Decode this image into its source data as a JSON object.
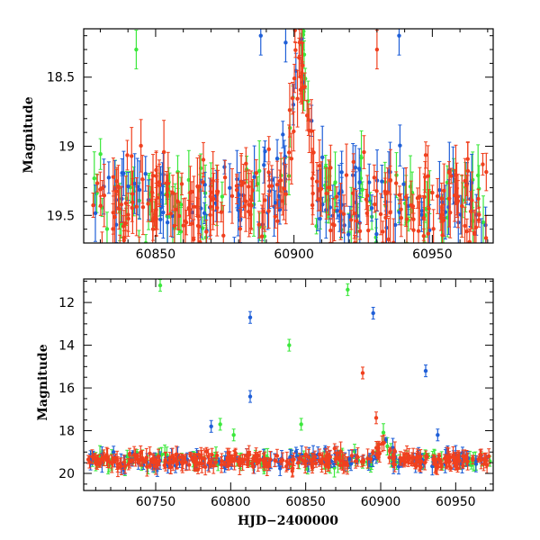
{
  "chart_data": [
    {
      "type": "scatter",
      "panel": "top",
      "xlabel": "",
      "ylabel": "Magnitude",
      "xlim": [
        60824,
        60972
      ],
      "ylim": [
        19.7,
        18.15
      ],
      "y_inverted": true,
      "xticks": [
        60850,
        60900,
        60950
      ],
      "xtick_labels": [
        "60850",
        "60900",
        "60950"
      ],
      "yticks": [
        18.5,
        19,
        19.5
      ],
      "ytick_labels": [
        "18.5",
        "19",
        "19.5"
      ],
      "grid": false,
      "series_colors": {
        "blue": "#1f5fd8",
        "green": "#3ce83c",
        "red": "#f0401e"
      },
      "baseline_mag": 19.4,
      "flare": {
        "peak_x": 60902,
        "peak_mag": 18.35,
        "width_days": 4
      },
      "notable_points": [
        {
          "series": "green",
          "x": 60843,
          "y": 18.3
        },
        {
          "series": "blue",
          "x": 60888,
          "y": 18.2
        },
        {
          "series": "blue",
          "x": 60897,
          "y": 18.25
        },
        {
          "series": "red",
          "x": 60930,
          "y": 18.3
        },
        {
          "series": "blue",
          "x": 60938,
          "y": 18.2
        }
      ]
    },
    {
      "type": "scatter",
      "panel": "bottom",
      "xlabel": "HJD−2400000",
      "ylabel": "Magnitude",
      "xlim": [
        60702,
        60975
      ],
      "ylim": [
        20.8,
        10.9
      ],
      "y_inverted": true,
      "xticks": [
        60750,
        60800,
        60850,
        60900,
        60950
      ],
      "xtick_labels": [
        "60750",
        "60800",
        "60850",
        "60900",
        "60950"
      ],
      "yticks": [
        12,
        14,
        16,
        18,
        20
      ],
      "ytick_labels": [
        "12",
        "14",
        "16",
        "18",
        "20"
      ],
      "grid": false,
      "series_colors": {
        "blue": "#1f5fd8",
        "green": "#3ce83c",
        "red": "#f0401e"
      },
      "baseline_mag": 19.4,
      "outliers": [
        {
          "series": "green",
          "x": 60753,
          "y": 11.2
        },
        {
          "series": "blue",
          "x": 60813,
          "y": 12.7
        },
        {
          "series": "blue",
          "x": 60813,
          "y": 16.4
        },
        {
          "series": "green",
          "x": 60839,
          "y": 14.0
        },
        {
          "series": "green",
          "x": 60878,
          "y": 11.4
        },
        {
          "series": "blue",
          "x": 60895,
          "y": 12.5
        },
        {
          "series": "red",
          "x": 60888,
          "y": 15.3
        },
        {
          "series": "red",
          "x": 60897,
          "y": 17.4
        },
        {
          "series": "blue",
          "x": 60930,
          "y": 15.2
        },
        {
          "series": "blue",
          "x": 60787,
          "y": 17.8
        },
        {
          "series": "green",
          "x": 60793,
          "y": 17.7
        },
        {
          "series": "green",
          "x": 60847,
          "y": 17.7
        },
        {
          "series": "blue",
          "x": 60938,
          "y": 18.2
        },
        {
          "series": "green",
          "x": 60802,
          "y": 18.2
        }
      ]
    }
  ]
}
